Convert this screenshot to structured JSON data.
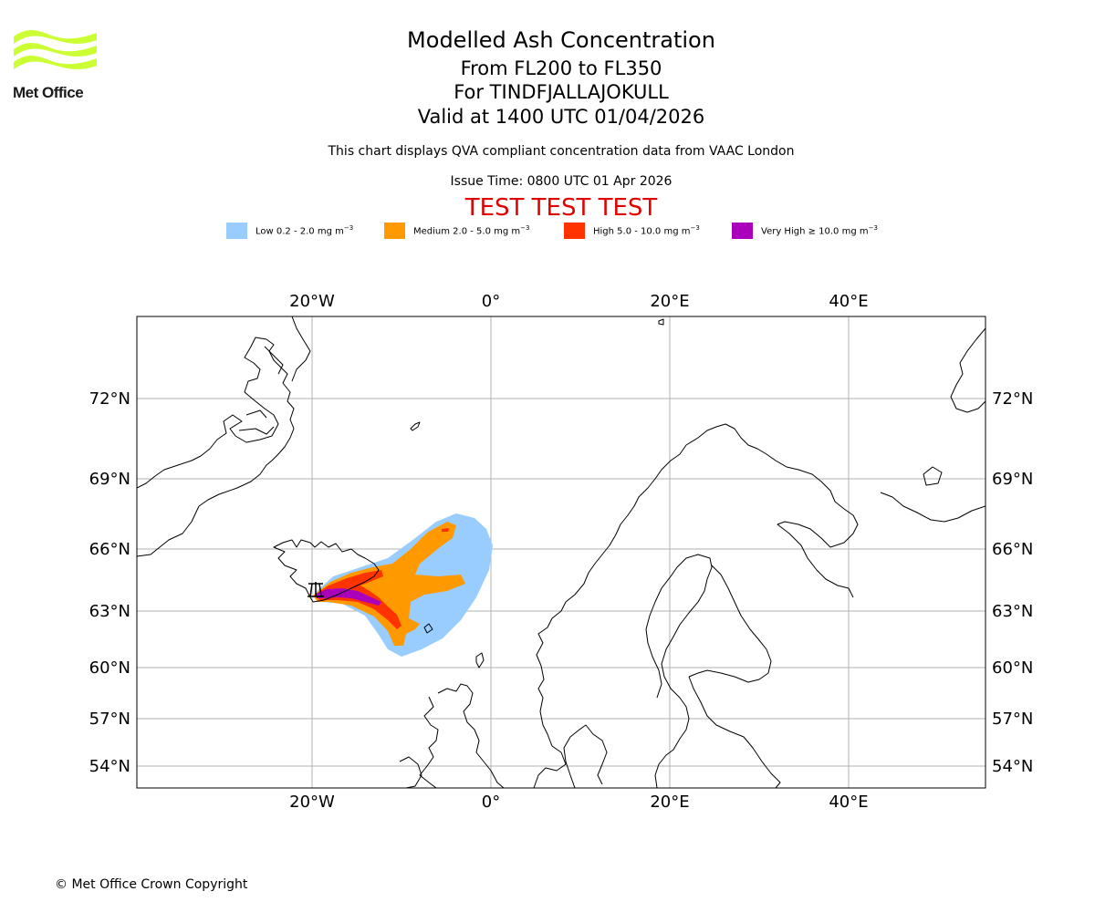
{
  "branding": {
    "logo_text": "Met Office",
    "logo_color": "#ccff33"
  },
  "header": {
    "title": "Modelled Ash Concentration",
    "flight_levels": "From FL200 to FL350",
    "volcano": "For TINDFJALLAJOKULL",
    "valid_time": "Valid at 1400 UTC 01/04/2026",
    "subtitle": "This chart displays QVA compliant concentration data from VAAC London",
    "issue_time": "Issue Time: 0800 UTC 01 Apr 2026",
    "test_banner": "TEST TEST TEST",
    "test_color": "#e00000"
  },
  "legend": [
    {
      "label": "Low 0.2 - 2.0 mg m",
      "unit_exp": "−3",
      "color": "#99ccff"
    },
    {
      "label": "Medium 2.0 - 5.0 mg m",
      "unit_exp": "−3",
      "color": "#ff9900"
    },
    {
      "label": "High 5.0 - 10.0 mg m",
      "unit_exp": "−3",
      "color": "#ff3300"
    },
    {
      "label": "Very High  ≥  10.0 mg m",
      "unit_exp": "−3",
      "color": "#aa00bb"
    }
  ],
  "map": {
    "projection": "Mercator",
    "lon_range": [
      -39.5,
      55
    ],
    "lat_range": [
      52.5,
      74.5
    ],
    "lon_ticks": [
      "20°W",
      "0°",
      "20°E",
      "40°E"
    ],
    "lat_ticks": [
      "72°N",
      "69°N",
      "66°N",
      "63°N",
      "60°N",
      "57°N",
      "54°N"
    ],
    "source_marker": "volcano-symbol"
  },
  "footer": {
    "copyright": "© Met Office Crown Copyright"
  }
}
